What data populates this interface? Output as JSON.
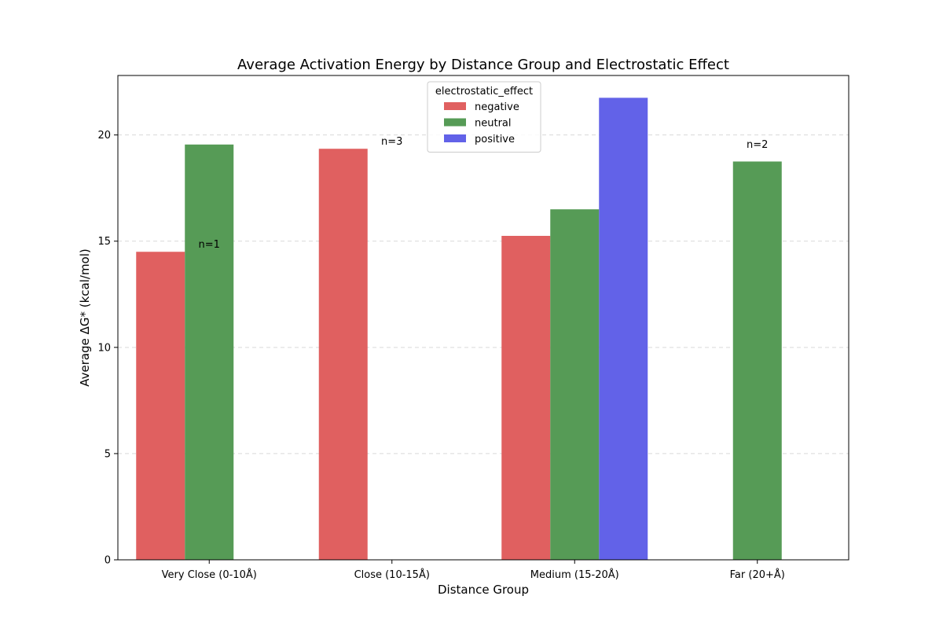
{
  "chart_data": {
    "type": "bar",
    "title": "Average Activation Energy by Distance Group and Electrostatic Effect",
    "xlabel": "Distance Group",
    "ylabel": "Average ΔG* (kcal/mol)",
    "categories": [
      "Very Close (0-10Å)",
      "Close (10-15Å)",
      "Medium (15-20Å)",
      "Far (20+Å)"
    ],
    "ylim": [
      0,
      22.8
    ],
    "yticks": [
      0,
      5,
      10,
      15,
      20
    ],
    "grid": "horizontal-dashed",
    "legend": {
      "title": "electrostatic_effect",
      "placement": "top-center"
    },
    "series": [
      {
        "name": "negative",
        "color": "#e06060",
        "values": [
          14.5,
          19.35,
          15.25,
          null
        ]
      },
      {
        "name": "neutral",
        "color": "#569b56",
        "values": [
          19.55,
          null,
          16.5,
          18.75
        ]
      },
      {
        "name": "positive",
        "color": "#6262e8",
        "values": [
          null,
          null,
          21.75,
          null
        ]
      }
    ],
    "annotations": [
      {
        "text": "n=1",
        "category": 0,
        "y": 14.7
      },
      {
        "text": "n=3",
        "category": 1,
        "y": 19.55
      },
      {
        "text": "n=2",
        "category": 3,
        "y": 19.4
      }
    ]
  }
}
